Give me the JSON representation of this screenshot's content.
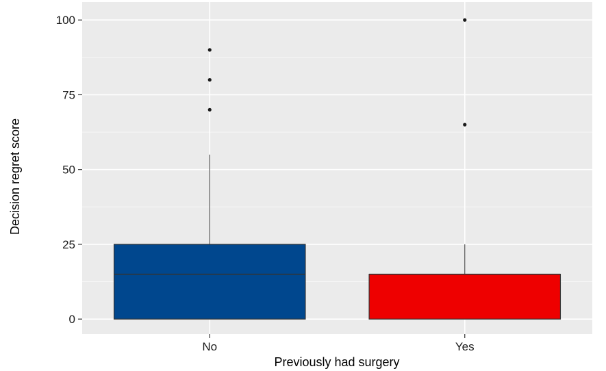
{
  "chart_data": {
    "type": "box",
    "xlabel": "Previously had surgery",
    "ylabel": "Decision regret score",
    "ylim": [
      -5,
      106
    ],
    "yticks": [
      0,
      25,
      50,
      75,
      100
    ],
    "categories": [
      "No",
      "Yes"
    ],
    "boxes": [
      {
        "category": "No",
        "min": 0,
        "q1": 0,
        "median": 15,
        "q3": 25,
        "max": 55,
        "outliers": [
          70,
          80,
          90
        ],
        "color": "#00478e"
      },
      {
        "category": "Yes",
        "min": 0,
        "q1": 0,
        "median": 15,
        "q3": 15,
        "max": 25,
        "outliers": [
          65,
          100
        ],
        "color": "#ee0000"
      }
    ],
    "grid": true,
    "panel_background": "#ebebeb",
    "legend": "none"
  }
}
